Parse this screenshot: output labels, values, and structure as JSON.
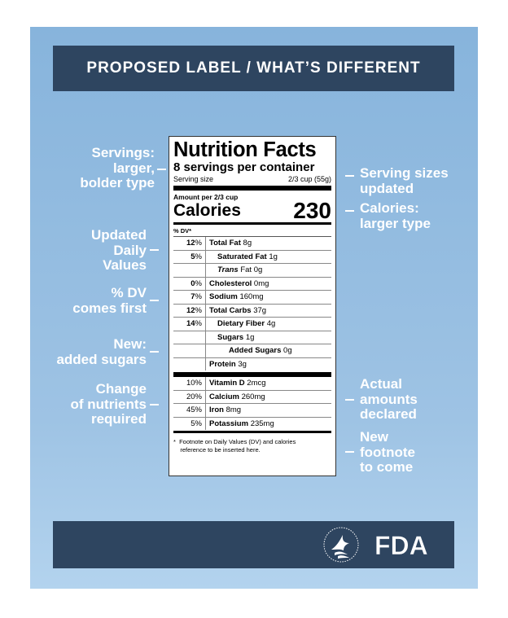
{
  "header": {
    "title": "PROPOSED LABEL / WHAT’S DIFFERENT"
  },
  "annotations": {
    "left": [
      {
        "id": "servings",
        "text": "Servings:\nlarger,\nbolder type"
      },
      {
        "id": "updated-dv",
        "text": "Updated\nDaily\nValues"
      },
      {
        "id": "dv-first",
        "text": "% DV\ncomes first"
      },
      {
        "id": "added-sugars",
        "text": "New:\nadded sugars"
      },
      {
        "id": "nutrients",
        "text": "Change\nof nutrients\nrequired"
      }
    ],
    "right": [
      {
        "id": "serving-sizes",
        "text": "Serving sizes\nupdated"
      },
      {
        "id": "calories",
        "text": "Calories:\nlarger type"
      },
      {
        "id": "actual-amounts",
        "text": "Actual\namounts\ndeclared"
      },
      {
        "id": "new-footnote",
        "text": "New\nfootnote\nto come"
      }
    ]
  },
  "label": {
    "title": "Nutrition Facts",
    "servings": "8 servings per container",
    "serving_size_label": "Serving size",
    "serving_size_value": "2/3 cup (55g)",
    "amount_per": "Amount per 2/3 cup",
    "calories_label": "Calories",
    "calories_value": "230",
    "dv_header": "% DV*",
    "rows": [
      {
        "pct": "12",
        "name": "Total Fat",
        "amount": "8g"
      },
      {
        "pct": "5",
        "name": "Saturated Fat",
        "amount": "1g"
      },
      {
        "pct": "",
        "name": "Trans",
        "name_suffix": " Fat",
        "amount": "0g"
      },
      {
        "pct": "0",
        "name": "Cholesterol",
        "amount": "0mg"
      },
      {
        "pct": "7",
        "name": "Sodium",
        "amount": "160mg"
      },
      {
        "pct": "12",
        "name": "Total Carbs",
        "amount": "37g"
      },
      {
        "pct": "14",
        "name": "Dietary Fiber",
        "amount": "4g"
      },
      {
        "pct": "",
        "name": "Sugars",
        "amount": "1g"
      },
      {
        "pct": "",
        "name": "Added Sugars",
        "amount": "0g"
      },
      {
        "pct": "",
        "name": "Protein",
        "amount": "3g"
      }
    ],
    "vitamins": [
      {
        "pct": "10%",
        "name": "Vitamin D",
        "amount": "2mcg"
      },
      {
        "pct": "20%",
        "name": "Calcium",
        "amount": "260mg"
      },
      {
        "pct": "45%",
        "name": "Iron",
        "amount": "8mg"
      },
      {
        "pct": "5%",
        "name": "Potassium",
        "amount": "235mg"
      }
    ],
    "footnote": "*  Footnote on Daily Values (DV) and calories\n    reference to be inserted here."
  },
  "footer": {
    "logo_text": "FDA",
    "icons": [
      "hhs-eagle-icon",
      "fda-logo"
    ]
  },
  "colors": {
    "poster_bg": "#87b4dc",
    "band": "#2e4560",
    "annotation_text": "#ffffff"
  }
}
